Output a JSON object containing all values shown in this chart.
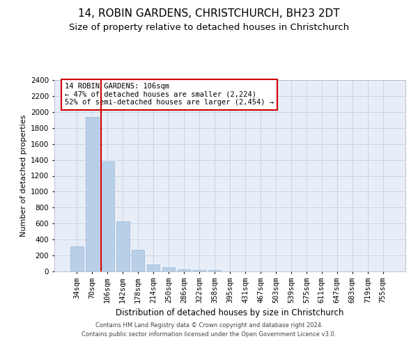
{
  "title": "14, ROBIN GARDENS, CHRISTCHURCH, BH23 2DT",
  "subtitle": "Size of property relative to detached houses in Christchurch",
  "xlabel": "Distribution of detached houses by size in Christchurch",
  "ylabel": "Number of detached properties",
  "categories": [
    "34sqm",
    "70sqm",
    "106sqm",
    "142sqm",
    "178sqm",
    "214sqm",
    "250sqm",
    "286sqm",
    "322sqm",
    "358sqm",
    "395sqm",
    "431sqm",
    "467sqm",
    "503sqm",
    "539sqm",
    "575sqm",
    "611sqm",
    "647sqm",
    "683sqm",
    "719sqm",
    "755sqm"
  ],
  "values": [
    310,
    1940,
    1380,
    630,
    270,
    90,
    50,
    25,
    20,
    15,
    0,
    0,
    0,
    0,
    0,
    0,
    0,
    0,
    0,
    0,
    0
  ],
  "bar_color": "#b8cfe8",
  "bar_edge_color": "#9ab8d8",
  "highlight_index": 2,
  "highlight_color": "#cc0000",
  "ylim": [
    0,
    2400
  ],
  "yticks": [
    0,
    200,
    400,
    600,
    800,
    1000,
    1200,
    1400,
    1600,
    1800,
    2000,
    2200,
    2400
  ],
  "annotation_title": "14 ROBIN GARDENS: 106sqm",
  "annotation_line1": "← 47% of detached houses are smaller (2,224)",
  "annotation_line2": "52% of semi-detached houses are larger (2,454) →",
  "footer1": "Contains HM Land Registry data © Crown copyright and database right 2024.",
  "footer2": "Contains public sector information licensed under the Open Government Licence v3.0.",
  "bg_color": "#ffffff",
  "plot_bg_color": "#e8eef8",
  "grid_color": "#c8d4e8",
  "title_fontsize": 11,
  "subtitle_fontsize": 9.5,
  "xlabel_fontsize": 8.5,
  "ylabel_fontsize": 8,
  "tick_fontsize": 7.5,
  "annotation_fontsize": 7.5,
  "footer_fontsize": 6
}
